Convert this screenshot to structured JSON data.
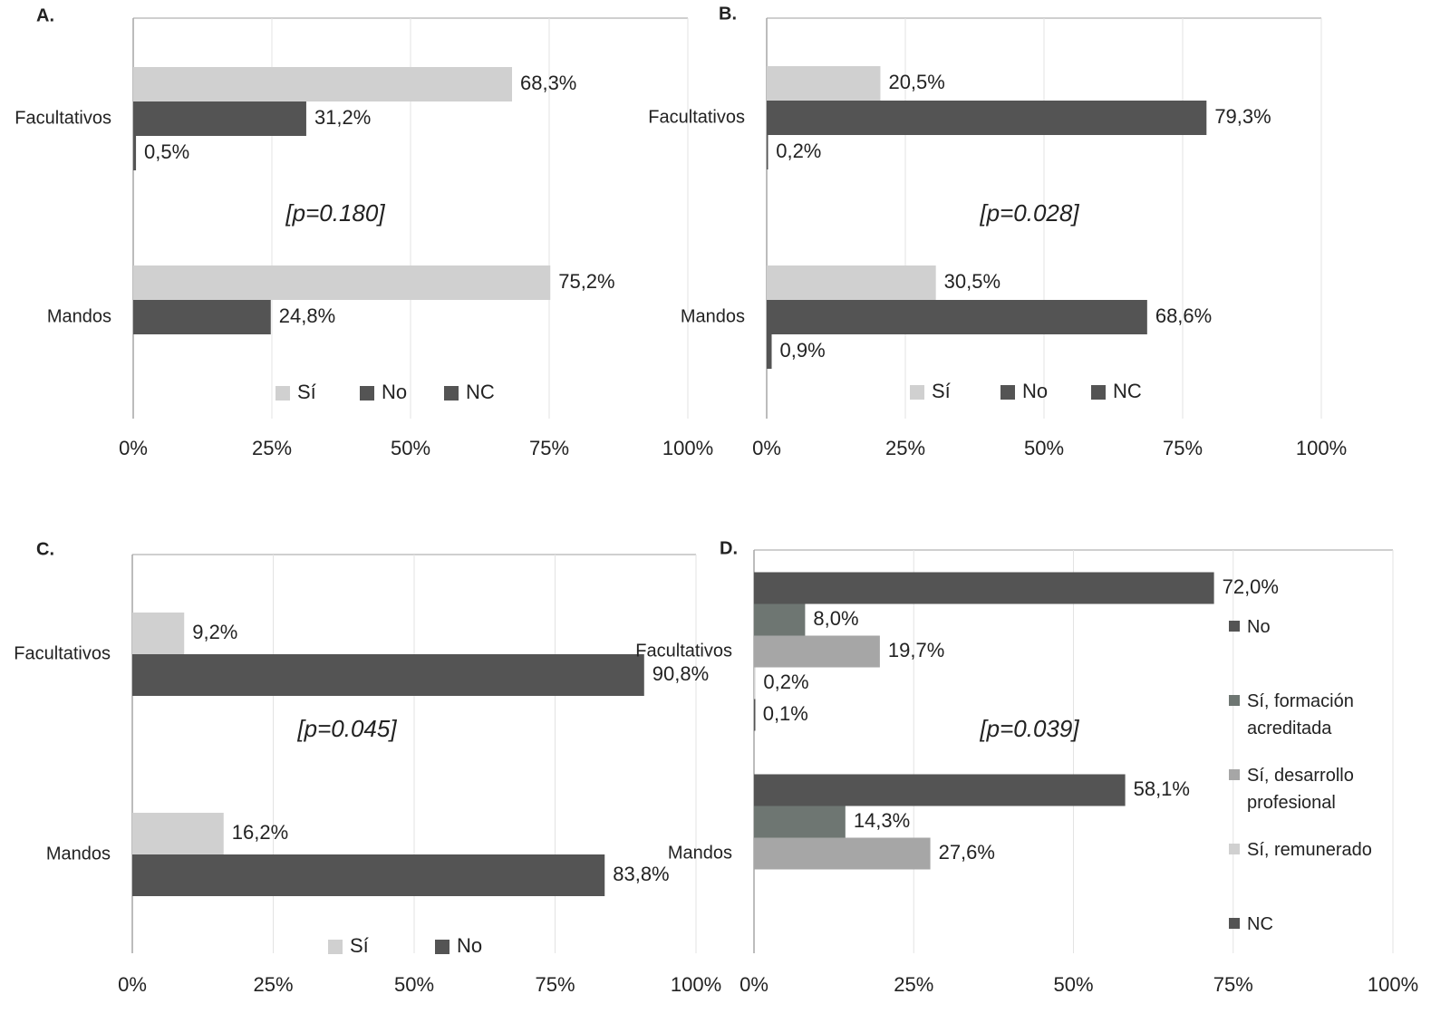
{
  "chart_data": [
    {
      "type": "bar",
      "title": "A.",
      "annotation": "[p=0.180]",
      "categories": [
        "Facultativos",
        "Mandos"
      ],
      "series": [
        {
          "name": "Sí",
          "color": "#d0d0d0",
          "values": [
            68.3,
            75.2
          ],
          "value_labels": [
            "68,3%",
            "75,2%"
          ]
        },
        {
          "name": "No",
          "color": "#545454",
          "values": [
            31.2,
            24.8
          ],
          "value_labels": [
            "31,2%",
            "24,8%"
          ]
        },
        {
          "name": "NC",
          "color": "#545454",
          "values": [
            0.5,
            null
          ],
          "value_labels": [
            "0,5%",
            null
          ]
        }
      ],
      "xlim": [
        0,
        100
      ],
      "xticks": [
        {
          "value": 0,
          "label": "0%"
        },
        {
          "value": 25,
          "label": "25%"
        },
        {
          "value": 50,
          "label": "50%"
        },
        {
          "value": 75,
          "label": "75%"
        },
        {
          "value": 100,
          "label": "100%"
        }
      ],
      "grid": true,
      "legend": "bottom"
    },
    {
      "type": "bar",
      "title": "B.",
      "annotation": "[p=0.028]",
      "categories": [
        "Facultativos",
        "Mandos"
      ],
      "series": [
        {
          "name": "Sí",
          "color": "#d0d0d0",
          "values": [
            20.5,
            30.5
          ],
          "value_labels": [
            "20,5%",
            "30,5%"
          ]
        },
        {
          "name": "No",
          "color": "#545454",
          "values": [
            79.3,
            68.6
          ],
          "value_labels": [
            "79,3%",
            "68,6%"
          ]
        },
        {
          "name": "NC",
          "color": "#545454",
          "values": [
            0.2,
            0.9
          ],
          "value_labels": [
            "0,2%",
            "0,9%"
          ]
        }
      ],
      "xlim": [
        0,
        100
      ],
      "xticks": [
        {
          "value": 0,
          "label": "0%"
        },
        {
          "value": 25,
          "label": "25%"
        },
        {
          "value": 50,
          "label": "50%"
        },
        {
          "value": 75,
          "label": "75%"
        },
        {
          "value": 100,
          "label": "100%"
        }
      ],
      "grid": true,
      "legend": "bottom"
    },
    {
      "type": "bar",
      "title": "C.",
      "annotation": "[p=0.045]",
      "categories": [
        "Facultativos",
        "Mandos"
      ],
      "series": [
        {
          "name": "Sí",
          "color": "#d0d0d0",
          "values": [
            9.2,
            16.2
          ],
          "value_labels": [
            "9,2%",
            "16,2%"
          ]
        },
        {
          "name": "No",
          "color": "#545454",
          "values": [
            90.8,
            83.8
          ],
          "value_labels": [
            "90,8%",
            "83,8%"
          ]
        }
      ],
      "xlim": [
        0,
        100
      ],
      "xticks": [
        {
          "value": 0,
          "label": "0%"
        },
        {
          "value": 25,
          "label": "25%"
        },
        {
          "value": 50,
          "label": "50%"
        },
        {
          "value": 75,
          "label": "75%"
        },
        {
          "value": 100,
          "label": "100%"
        }
      ],
      "grid": true,
      "legend": "bottom"
    },
    {
      "type": "bar",
      "title": "D.",
      "annotation": "[p=0.039]",
      "categories": [
        "Facultativos",
        "Mandos"
      ],
      "series": [
        {
          "name": "No",
          "color": "#545454",
          "values": [
            72.0,
            58.1
          ],
          "value_labels": [
            "72,0%",
            "58,1%"
          ]
        },
        {
          "name": "Sí, formación acreditada",
          "color": "#6e7672",
          "values": [
            8.0,
            14.3
          ],
          "value_labels": [
            "8,0%",
            "14,3%"
          ]
        },
        {
          "name": "Sí, desarrollo profesional",
          "color": "#a6a6a6",
          "values": [
            19.7,
            27.6
          ],
          "value_labels": [
            "19,7%",
            "27,6%"
          ]
        },
        {
          "name": "Sí, remunerado",
          "color": "#d0d0d0",
          "values": [
            0.2,
            null
          ],
          "value_labels": [
            "0,2%",
            null
          ]
        },
        {
          "name": "NC",
          "color": "#545454",
          "values": [
            0.1,
            null
          ],
          "value_labels": [
            "0,1%",
            null
          ]
        }
      ],
      "xlim": [
        0,
        100
      ],
      "xticks": [
        {
          "value": 0,
          "label": "0%"
        },
        {
          "value": 25,
          "label": "25%"
        },
        {
          "value": 50,
          "label": "50%"
        },
        {
          "value": 75,
          "label": "75%"
        },
        {
          "value": 100,
          "label": "100%"
        }
      ],
      "grid": true,
      "legend": "right"
    }
  ]
}
